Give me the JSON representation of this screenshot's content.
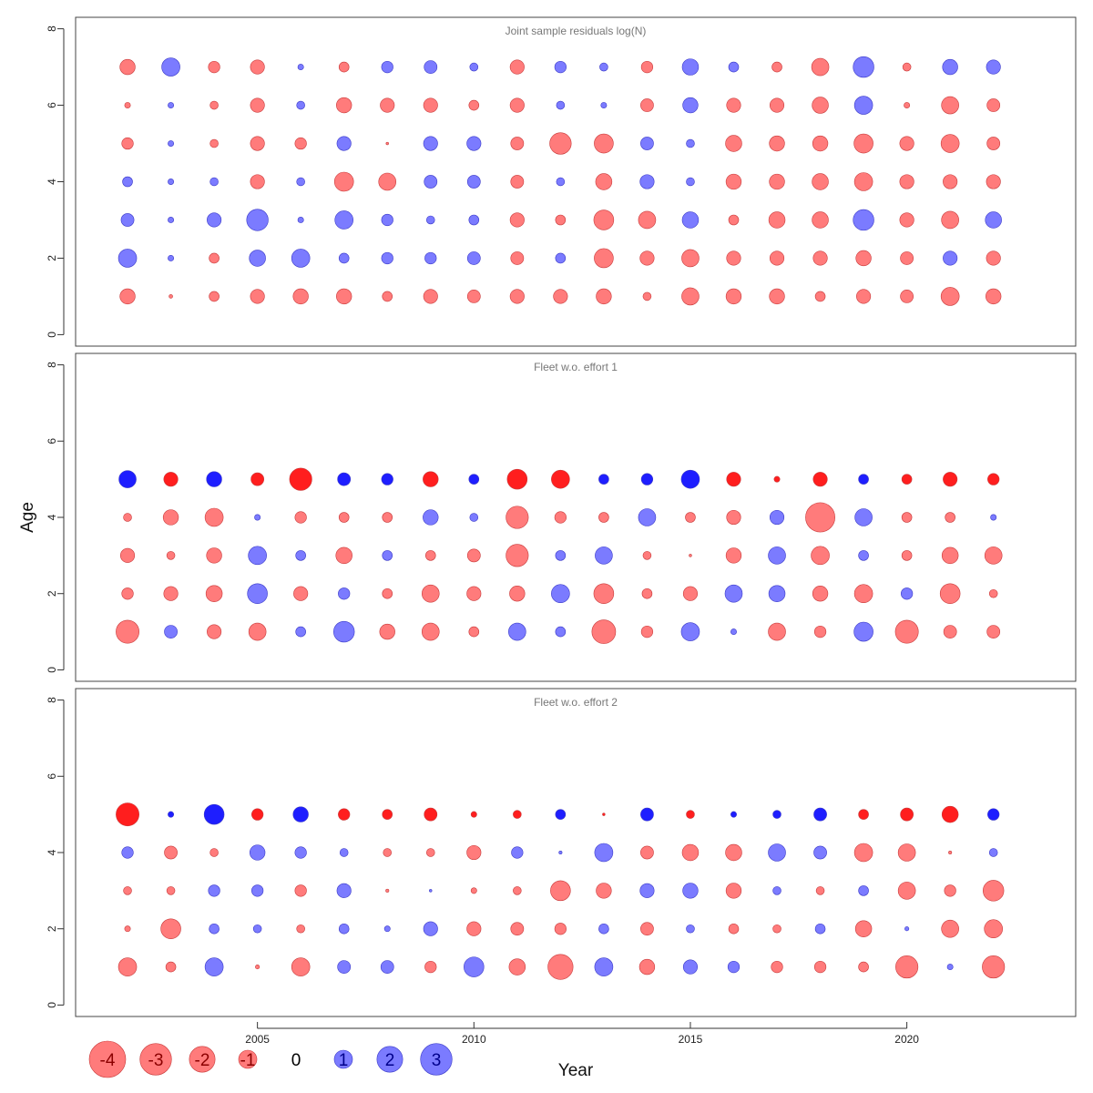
{
  "chart_data": {
    "type": "bubble-residuals",
    "ylabel": "Age",
    "xlabel": "Year",
    "x_ticks": [
      2005,
      2010,
      2015,
      2020
    ],
    "x_range": [
      2000.8,
      2023.9
    ],
    "y_ticks": [
      0,
      2,
      4,
      6,
      8
    ],
    "y_range": [
      -0.3,
      8.3
    ],
    "colors": {
      "positive_light": "#7b7bff",
      "negative_light": "#ff7b7b",
      "positive_strong": "#1e1eff",
      "negative_strong": "#ff1e1e",
      "positive_stroke": "#3a3ac8",
      "negative_stroke": "#c83a3a",
      "frame": "#444444",
      "axis": "#333333",
      "title_text": "#777777"
    },
    "legend": {
      "values": [
        -4,
        -3,
        -2,
        -1,
        0,
        1,
        2,
        3
      ],
      "labels": [
        "-4",
        "-3",
        "-2",
        "-1",
        "0",
        "1",
        "2",
        "3"
      ]
    },
    "panels": [
      {
        "title": "Joint sample residuals log(N)",
        "years": [
          2002,
          2003,
          2004,
          2005,
          2006,
          2007,
          2008,
          2009,
          2010,
          2011,
          2012,
          2013,
          2014,
          2015,
          2016,
          2017,
          2018,
          2019,
          2020,
          2021,
          2022
        ],
        "ages": [
          1,
          2,
          3,
          4,
          5,
          6,
          7
        ],
        "strong_ages": [],
        "residuals": [
          [
            -0.7,
            -0.04,
            -0.3,
            -0.6,
            -0.7,
            -0.7,
            -0.3,
            -0.6,
            -0.5,
            -0.6,
            -0.6,
            -0.7,
            -0.2,
            -0.9,
            -0.7,
            -0.7,
            -0.3,
            -0.6,
            -0.5,
            -1.0,
            -0.7
          ],
          [
            1.0,
            0.1,
            -0.3,
            0.8,
            1.0,
            0.3,
            0.4,
            0.4,
            0.5,
            -0.5,
            0.3,
            -1.1,
            -0.6,
            -0.9,
            -0.6,
            -0.6,
            -0.6,
            -0.7,
            -0.5,
            0.6,
            -0.6
          ],
          [
            0.5,
            0.1,
            0.6,
            1.4,
            0.1,
            1.0,
            0.4,
            0.2,
            0.3,
            -0.6,
            -0.3,
            -1.2,
            -0.9,
            0.8,
            -0.3,
            -0.8,
            -0.8,
            1.3,
            -0.6,
            -0.9,
            0.8
          ],
          [
            0.3,
            0.1,
            0.2,
            -0.6,
            0.2,
            -1.1,
            -0.9,
            0.5,
            0.5,
            -0.5,
            0.2,
            -0.8,
            0.6,
            0.2,
            -0.7,
            -0.7,
            -0.8,
            -1.0,
            -0.6,
            -0.6,
            -0.6
          ],
          [
            -0.4,
            0.1,
            -0.2,
            -0.6,
            -0.4,
            0.6,
            -0.02,
            0.6,
            0.6,
            -0.5,
            -1.4,
            -1.1,
            0.5,
            0.2,
            -0.8,
            -0.7,
            -0.7,
            -1.1,
            -0.6,
            -1.0,
            -0.5
          ],
          [
            -0.1,
            0.1,
            -0.2,
            -0.6,
            0.2,
            -0.7,
            -0.6,
            -0.6,
            -0.3,
            -0.6,
            0.2,
            0.1,
            -0.5,
            0.7,
            -0.6,
            -0.6,
            -0.8,
            1.0,
            -0.1,
            -0.9,
            -0.5
          ],
          [
            -0.7,
            1.0,
            -0.4,
            -0.6,
            0.1,
            -0.3,
            0.4,
            0.5,
            0.2,
            -0.6,
            0.4,
            0.2,
            -0.4,
            0.8,
            0.3,
            -0.3,
            -0.9,
            1.3,
            -0.2,
            0.7,
            0.6
          ]
        ]
      },
      {
        "title": "Fleet w.o. effort 1",
        "years": [
          2002,
          2003,
          2004,
          2005,
          2006,
          2007,
          2008,
          2009,
          2010,
          2011,
          2012,
          2013,
          2014,
          2015,
          2016,
          2017,
          2018,
          2019,
          2020,
          2021,
          2022
        ],
        "ages": [
          1,
          2,
          3,
          4,
          5
        ],
        "strong_ages": [
          5
        ],
        "residuals": [
          [
            -1.6,
            0.5,
            -0.6,
            -0.9,
            0.3,
            1.3,
            -0.7,
            -0.9,
            -0.3,
            0.9,
            0.3,
            -1.7,
            -0.4,
            1.0,
            0.1,
            -0.9,
            -0.4,
            1.1,
            -1.6,
            -0.5,
            -0.5
          ],
          [
            -0.4,
            -0.6,
            -0.8,
            1.2,
            -0.6,
            0.4,
            -0.3,
            -0.9,
            -0.6,
            -0.7,
            1.0,
            -1.2,
            -0.3,
            -0.6,
            0.9,
            0.8,
            -0.7,
            -1.0,
            0.4,
            -1.2,
            -0.2
          ],
          [
            -0.6,
            -0.2,
            -0.7,
            1.0,
            0.3,
            -0.8,
            0.3,
            -0.3,
            -0.5,
            -1.5,
            0.3,
            0.9,
            -0.2,
            -0.02,
            -0.7,
            0.9,
            -1.0,
            0.3,
            -0.3,
            -0.8,
            -0.9
          ],
          [
            -0.2,
            -0.7,
            -1.0,
            0.1,
            -0.4,
            -0.3,
            -0.3,
            0.7,
            0.2,
            -1.5,
            -0.4,
            -0.3,
            0.9,
            -0.3,
            -0.6,
            0.6,
            -2.6,
            0.9,
            -0.3,
            -0.3,
            0.1
          ],
          [
            0.9,
            -0.6,
            0.7,
            -0.5,
            -1.5,
            0.5,
            0.4,
            -0.7,
            0.3,
            -1.2,
            -1.0,
            0.3,
            0.4,
            1.0,
            -0.6,
            -0.1,
            -0.6,
            0.3,
            -0.3,
            -0.6,
            -0.4
          ]
        ]
      },
      {
        "title": "Fleet w.o. effort 2",
        "years": [
          2002,
          2003,
          2004,
          2005,
          2006,
          2007,
          2008,
          2009,
          2010,
          2011,
          2012,
          2013,
          2014,
          2015,
          2016,
          2017,
          2018,
          2019,
          2020,
          2021,
          2022
        ],
        "ages": [
          1,
          2,
          3,
          4,
          5
        ],
        "strong_ages": [
          5
        ],
        "residuals": [
          [
            -1.0,
            -0.3,
            1.0,
            -0.05,
            -1.0,
            0.5,
            0.5,
            -0.4,
            1.2,
            -0.8,
            -1.9,
            1.0,
            -0.7,
            0.6,
            0.4,
            -0.4,
            -0.4,
            -0.3,
            -1.5,
            0.1,
            -1.5
          ],
          [
            -0.1,
            -1.2,
            0.3,
            0.2,
            -0.2,
            0.3,
            0.1,
            0.6,
            -0.6,
            -0.5,
            -0.4,
            0.3,
            -0.5,
            0.2,
            -0.3,
            -0.2,
            0.3,
            -0.8,
            0.05,
            -0.9,
            -1.0
          ],
          [
            -0.2,
            -0.2,
            0.4,
            0.4,
            -0.4,
            0.6,
            -0.03,
            0.02,
            -0.1,
            -0.2,
            -1.2,
            -0.7,
            0.6,
            0.7,
            -0.7,
            0.2,
            -0.2,
            0.3,
            -0.9,
            -0.4,
            -1.3
          ],
          [
            0.4,
            -0.5,
            -0.2,
            0.7,
            0.4,
            0.2,
            -0.2,
            -0.2,
            -0.6,
            0.4,
            0.03,
            1.0,
            -0.5,
            -0.8,
            -0.8,
            0.9,
            0.5,
            -1.0,
            -0.9,
            -0.03,
            0.2
          ],
          [
            -1.6,
            0.1,
            1.2,
            -0.4,
            0.7,
            -0.4,
            -0.3,
            -0.5,
            -0.1,
            -0.2,
            0.3,
            -0.02,
            0.5,
            -0.2,
            0.1,
            0.2,
            0.5,
            -0.3,
            -0.5,
            -0.8,
            0.4
          ]
        ]
      }
    ]
  }
}
